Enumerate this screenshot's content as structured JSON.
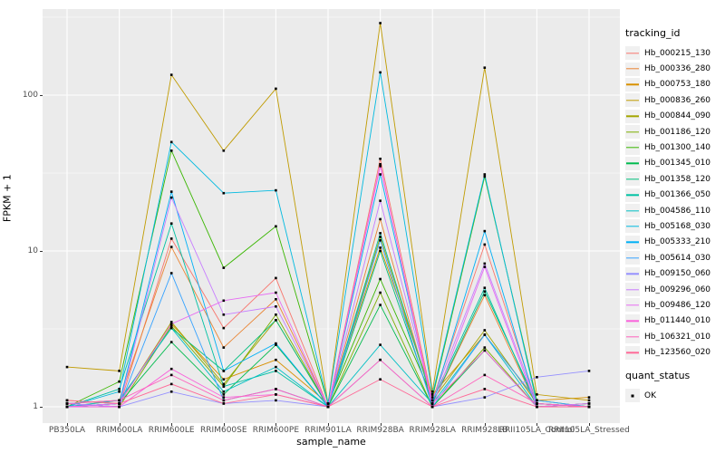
{
  "figure": {
    "xlabel": "sample_name",
    "ylabel": "FPKM + 1",
    "legend_title": "tracking_id",
    "quant_legend_title": "quant_status",
    "quant_legend_item": "OK",
    "panel_bg": "#EBEBEB",
    "grid_color": "#FFFFFF",
    "tick_text_color": "#4D4D4D",
    "point_color": "#000000"
  },
  "chart_data": {
    "type": "line",
    "title": "",
    "xlabel": "sample_name",
    "ylabel": "FPKM + 1",
    "y_scale": "log10",
    "y_ticks": [
      1,
      10,
      100
    ],
    "y_minor_gridlines": [
      3.162,
      31.62,
      316.2
    ],
    "ylim": [
      1,
      358
    ],
    "grid": true,
    "legend_position": "right",
    "point_shape": "filled-square",
    "quant_status": "OK",
    "categories": [
      "PB350LA",
      "RRIM600LA",
      "RRIM600LE",
      "RRIM600SE",
      "RRIM600PE",
      "RRIM901LA",
      "RRIM928BA",
      "RRIM928LA",
      "RRIM928LB",
      "RRII105LA_Control",
      "RRII105LA_Stressed"
    ],
    "series": [
      {
        "name": "Hb_000215_130",
        "color": "#F8766D",
        "values": [
          1.05,
          1.0,
          12,
          3.2,
          6.7,
          1.0,
          39,
          1.1,
          11,
          1.05,
          1.0
        ]
      },
      {
        "name": "Hb_000336_280",
        "color": "#EA8331",
        "values": [
          1.0,
          1.1,
          10.6,
          2.4,
          4.9,
          1.0,
          16,
          1.05,
          5.2,
          1.0,
          1.0
        ]
      },
      {
        "name": "Hb_000753_180",
        "color": "#D89000",
        "values": [
          1.1,
          1.05,
          3.4,
          1.5,
          2.0,
          1.05,
          10.5,
          1.2,
          2.9,
          1.1,
          1.15
        ]
      },
      {
        "name": "Hb_000836_260",
        "color": "#C09B00",
        "values": [
          1.8,
          1.7,
          135,
          44,
          110,
          1.05,
          290,
          1.25,
          150,
          1.2,
          1.1
        ]
      },
      {
        "name": "Hb_000844_090",
        "color": "#A3A500",
        "values": [
          1.0,
          1.05,
          3.5,
          1.4,
          3.6,
          1.0,
          12.3,
          1.1,
          3.1,
          1.05,
          1.0
        ]
      },
      {
        "name": "Hb_001186_120",
        "color": "#7CAE00",
        "values": [
          1.05,
          1.0,
          3.3,
          1.35,
          3.9,
          1.0,
          5.4,
          1.0,
          2.4,
          1.0,
          1.05
        ]
      },
      {
        "name": "Hb_001300_140",
        "color": "#39B600",
        "values": [
          1.0,
          1.45,
          44,
          7.8,
          14.4,
          1.05,
          6.6,
          1.15,
          30,
          1.1,
          1.0
        ]
      },
      {
        "name": "Hb_001345_010",
        "color": "#00BB4E",
        "values": [
          1.0,
          1.05,
          2.6,
          1.2,
          2.5,
          1.0,
          4.5,
          1.0,
          2.3,
          1.0,
          1.0
        ]
      },
      {
        "name": "Hb_001358_120",
        "color": "#00BF7D",
        "values": [
          1.05,
          1.1,
          3.2,
          1.7,
          3.6,
          1.0,
          10.0,
          1.05,
          5.5,
          1.05,
          1.0
        ]
      },
      {
        "name": "Hb_001366_050",
        "color": "#00C1A3",
        "values": [
          1.0,
          1.3,
          15,
          1.35,
          1.7,
          1.0,
          13,
          1.1,
          5.8,
          1.0,
          1.05
        ]
      },
      {
        "name": "Hb_004586_110",
        "color": "#00BFC4",
        "values": [
          1.0,
          1.1,
          3.2,
          1.25,
          1.8,
          1.0,
          2.5,
          1.05,
          2.9,
          1.0,
          1.0
        ]
      },
      {
        "name": "Hb_005168_030",
        "color": "#00BAE0",
        "values": [
          1.0,
          1.25,
          50,
          23.5,
          24.5,
          1.05,
          140,
          1.2,
          31,
          1.05,
          1.0
        ]
      },
      {
        "name": "Hb_005333_210",
        "color": "#00B0F6",
        "values": [
          1.0,
          1.05,
          24,
          1.7,
          2.55,
          1.0,
          31,
          1.05,
          13.4,
          1.0,
          1.0
        ]
      },
      {
        "name": "Hb_005614_030",
        "color": "#35A2FF",
        "values": [
          1.05,
          1.0,
          7.2,
          1.1,
          1.3,
          1.0,
          11.7,
          1.0,
          2.9,
          1.1,
          1.0
        ]
      },
      {
        "name": "Hb_009150_060",
        "color": "#9590FF",
        "values": [
          1.0,
          1.0,
          1.25,
          1.05,
          1.1,
          1.0,
          2.0,
          1.0,
          1.15,
          1.55,
          1.7
        ]
      },
      {
        "name": "Hb_009296_060",
        "color": "#C77CFF",
        "values": [
          1.05,
          1.0,
          22,
          3.9,
          4.4,
          1.0,
          21,
          1.1,
          8.3,
          1.05,
          1.0
        ]
      },
      {
        "name": "Hb_009486_120",
        "color": "#E76BF3",
        "values": [
          1.0,
          1.05,
          3.4,
          4.8,
          5.4,
          1.0,
          36,
          1.0,
          7.9,
          1.0,
          1.05
        ]
      },
      {
        "name": "Hb_011440_010",
        "color": "#FA62DB",
        "values": [
          1.0,
          1.0,
          1.75,
          1.15,
          1.2,
          1.0,
          35,
          1.05,
          2.3,
          1.0,
          1.0
        ]
      },
      {
        "name": "Hb_106321_010",
        "color": "#FF62BC",
        "values": [
          1.05,
          1.1,
          1.6,
          1.1,
          1.3,
          1.0,
          2.0,
          1.0,
          1.6,
          1.05,
          1.0
        ]
      },
      {
        "name": "Hb_123560_020",
        "color": "#FF6A98",
        "values": [
          1.1,
          1.05,
          1.4,
          1.05,
          1.2,
          1.0,
          1.5,
          1.0,
          1.3,
          1.0,
          1.0
        ]
      }
    ]
  }
}
